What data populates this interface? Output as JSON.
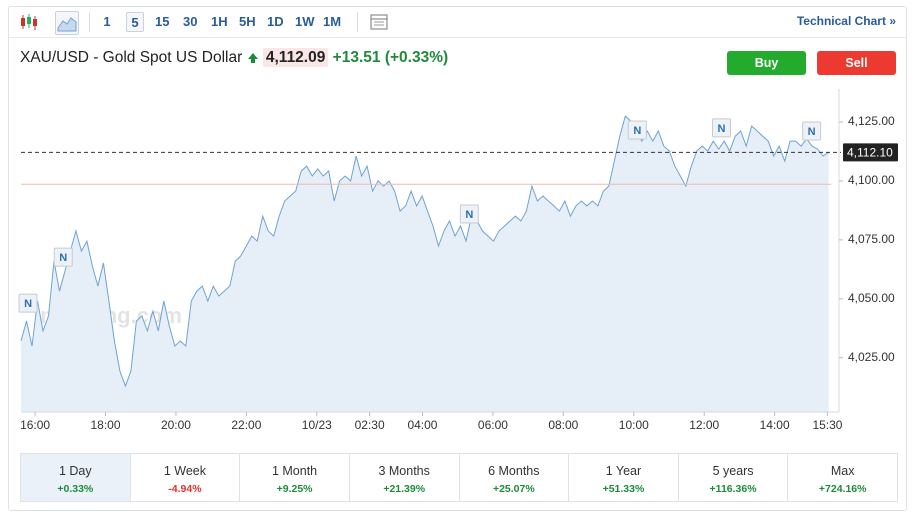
{
  "toolbar": {
    "intervals": [
      "1",
      "5",
      "15",
      "30",
      "1H",
      "5H",
      "1D",
      "1W",
      "1M"
    ],
    "selected": "5",
    "link": "Technical Chart",
    "link_arrow": "»"
  },
  "header": {
    "title": "XAU/USD - Gold Spot US Dollar",
    "price": "4,112.09",
    "change": "+13.51",
    "change_pct": "(+0.33%)",
    "buy": "Buy",
    "sell": "Sell"
  },
  "chart_data": {
    "type": "area",
    "watermark": "Investing.com",
    "x": [
      -0.4,
      -0.244,
      -0.088,
      0.068,
      0.224,
      0.38,
      0.536,
      0.692,
      0.848,
      1.004,
      1.16,
      1.316,
      1.472,
      1.628,
      1.784,
      1.94,
      2.096,
      2.252,
      2.408,
      2.564,
      2.72,
      2.876,
      3.032,
      3.188,
      3.344,
      3.5,
      3.656,
      3.812,
      3.968,
      4.124,
      4.28,
      4.436,
      4.592,
      4.748,
      4.904,
      5.06,
      5.216,
      5.372,
      5.528,
      5.684,
      5.84,
      5.996,
      6.152,
      6.308,
      6.464,
      6.62,
      6.776,
      6.932,
      7.088,
      7.244,
      7.4,
      7.556,
      7.712,
      7.868,
      8.024,
      8.18,
      8.336,
      8.492,
      8.648,
      8.804,
      8.96,
      9.116,
      9.272,
      9.428,
      9.584,
      9.74,
      9.896,
      10.052,
      10.208,
      10.364,
      10.52,
      10.676,
      10.832,
      10.988,
      11.144,
      11.3,
      11.456,
      11.612,
      11.768,
      11.924,
      12.08,
      12.236,
      12.392,
      12.548,
      12.704,
      12.86,
      13.016,
      13.172,
      13.328,
      13.484,
      13.64,
      13.796,
      13.952,
      14.108,
      14.264,
      14.42,
      14.576,
      14.732,
      14.888,
      15.044,
      15.2,
      15.356,
      15.512,
      15.668,
      15.824,
      15.98,
      16.136,
      16.292,
      16.448,
      16.604,
      16.76,
      16.916,
      17.072,
      17.228,
      17.384,
      17.54,
      17.696,
      17.852,
      18.008,
      18.164,
      18.32,
      18.476,
      18.632,
      18.788,
      18.944,
      19.1,
      19.256,
      19.412,
      19.568,
      19.724,
      19.88,
      20.036,
      20.192,
      20.348,
      20.504,
      20.66,
      20.816,
      20.972,
      21.128,
      21.284,
      21.44,
      21.596,
      21.752,
      21.908,
      22.064,
      22.22,
      22.376,
      22.532
    ],
    "series": [
      {
        "color": "#6ea3d3",
        "fill": "#e6eef7",
        "values": [
          4032.1,
          4040.6,
          4030,
          4049.1,
          4036.4,
          4042.7,
          4066,
          4053.3,
          4061.8,
          4070.3,
          4078.8,
          4070.3,
          4074.5,
          4063.9,
          4055.4,
          4065.2,
          4049.1,
          4032.1,
          4019.4,
          4013,
          4019.4,
          4040.6,
          4042.7,
          4036.4,
          4044.8,
          4036.4,
          4049.1,
          4038.5,
          4030,
          4032.1,
          4030,
          4049.1,
          4053.3,
          4055.4,
          4049.1,
          4055.4,
          4051.2,
          4053.3,
          4055.4,
          4066,
          4068.2,
          4072.4,
          4076.6,
          4074.5,
          4085.1,
          4078.8,
          4076.6,
          4085.1,
          4091.5,
          4093.6,
          4095.7,
          4104.2,
          4106.3,
          4102.1,
          4105.1,
          4102.1,
          4104.2,
          4091.5,
          4100,
          4102.1,
          4100,
          4110.6,
          4102.1,
          4106.3,
          4095.7,
          4100,
          4097.8,
          4100,
          4095.7,
          4087.2,
          4089.4,
          4095.7,
          4089.4,
          4093.6,
          4087.2,
          4080.9,
          4072.4,
          4078.8,
          4083,
          4076.6,
          4080.9,
          4074.5,
          4085.1,
          4083,
          4078.8,
          4076.6,
          4074.5,
          4078.8,
          4080.9,
          4083,
          4085.1,
          4083,
          4087.2,
          4097.8,
          4091.5,
          4093.6,
          4091.5,
          4089.4,
          4087.2,
          4091.5,
          4085.1,
          4089.4,
          4091.5,
          4089.4,
          4091.5,
          4089.4,
          4095.7,
          4097.8,
          4108.4,
          4119,
          4127.5,
          4125.4,
          4121.2,
          4116.9,
          4121.2,
          4116.9,
          4121.2,
          4114.8,
          4112.7,
          4106.3,
          4102.1,
          4097.8,
          4106.3,
          4112.7,
          4114.8,
          4112.7,
          4116.9,
          4113.5,
          4116.9,
          4112.7,
          4119,
          4121.2,
          4114.8,
          4123.3,
          4121.2,
          4119,
          4116.9,
          4110.6,
          4114.8,
          4108.4,
          4116.9,
          4116.9,
          4114.8,
          4117.8,
          4114.8,
          4113.5,
          4110.6,
          4112.1
        ]
      }
    ],
    "xlim": [
      -0.4,
      22.6
    ],
    "xticks": [
      {
        "value": 0,
        "label": "16:00"
      },
      {
        "value": 2,
        "label": "18:00"
      },
      {
        "value": 4,
        "label": "20:00"
      },
      {
        "value": 6,
        "label": "22:00"
      },
      {
        "value": 8,
        "label": "10/23"
      },
      {
        "value": 9.5,
        "label": "02:30"
      },
      {
        "value": 11,
        "label": "04:00"
      },
      {
        "value": 13,
        "label": "06:00"
      },
      {
        "value": 15,
        "label": "08:00"
      },
      {
        "value": 17,
        "label": "10:00"
      },
      {
        "value": 19,
        "label": "12:00"
      },
      {
        "value": 21,
        "label": "14:00"
      },
      {
        "value": 22.5,
        "label": "15:30"
      }
    ],
    "ylim": [
      4002,
      4139
    ],
    "yticks": [
      {
        "value": 4025,
        "label": "4,025.00"
      },
      {
        "value": 4050,
        "label": "4,050.00"
      },
      {
        "value": 4075,
        "label": "4,075.00"
      },
      {
        "value": 4100,
        "label": "4,100.00"
      },
      {
        "value": 4125,
        "label": "4,125.00"
      }
    ],
    "current_price": {
      "value": 4112.1,
      "label": "4,112.10"
    },
    "previous_close": 4098.58,
    "news_markers": [
      {
        "label": "N",
        "x": -0.2,
        "y": 4048.2
      },
      {
        "label": "N",
        "x": 0.8,
        "y": 4067.7
      },
      {
        "label": "N",
        "x": 12.33,
        "y": 4086
      },
      {
        "label": "N",
        "x": 17.1,
        "y": 4121.6
      },
      {
        "label": "N",
        "x": 19.49,
        "y": 4122.5
      },
      {
        "label": "N",
        "x": 22.05,
        "y": 4121.2
      }
    ]
  },
  "periods": [
    {
      "label": "1 Day",
      "change": "+0.33%"
    },
    {
      "label": "1 Week",
      "change": "-4.94%"
    },
    {
      "label": "1 Month",
      "change": "+9.25%"
    },
    {
      "label": "3 Months",
      "change": "+21.39%"
    },
    {
      "label": "6 Months",
      "change": "+25.07%"
    },
    {
      "label": "1 Year",
      "change": "+51.33%"
    },
    {
      "label": "5 years",
      "change": "+116.36%"
    },
    {
      "label": "Max",
      "change": "+724.16%"
    }
  ],
  "selected_period": "1 Day"
}
